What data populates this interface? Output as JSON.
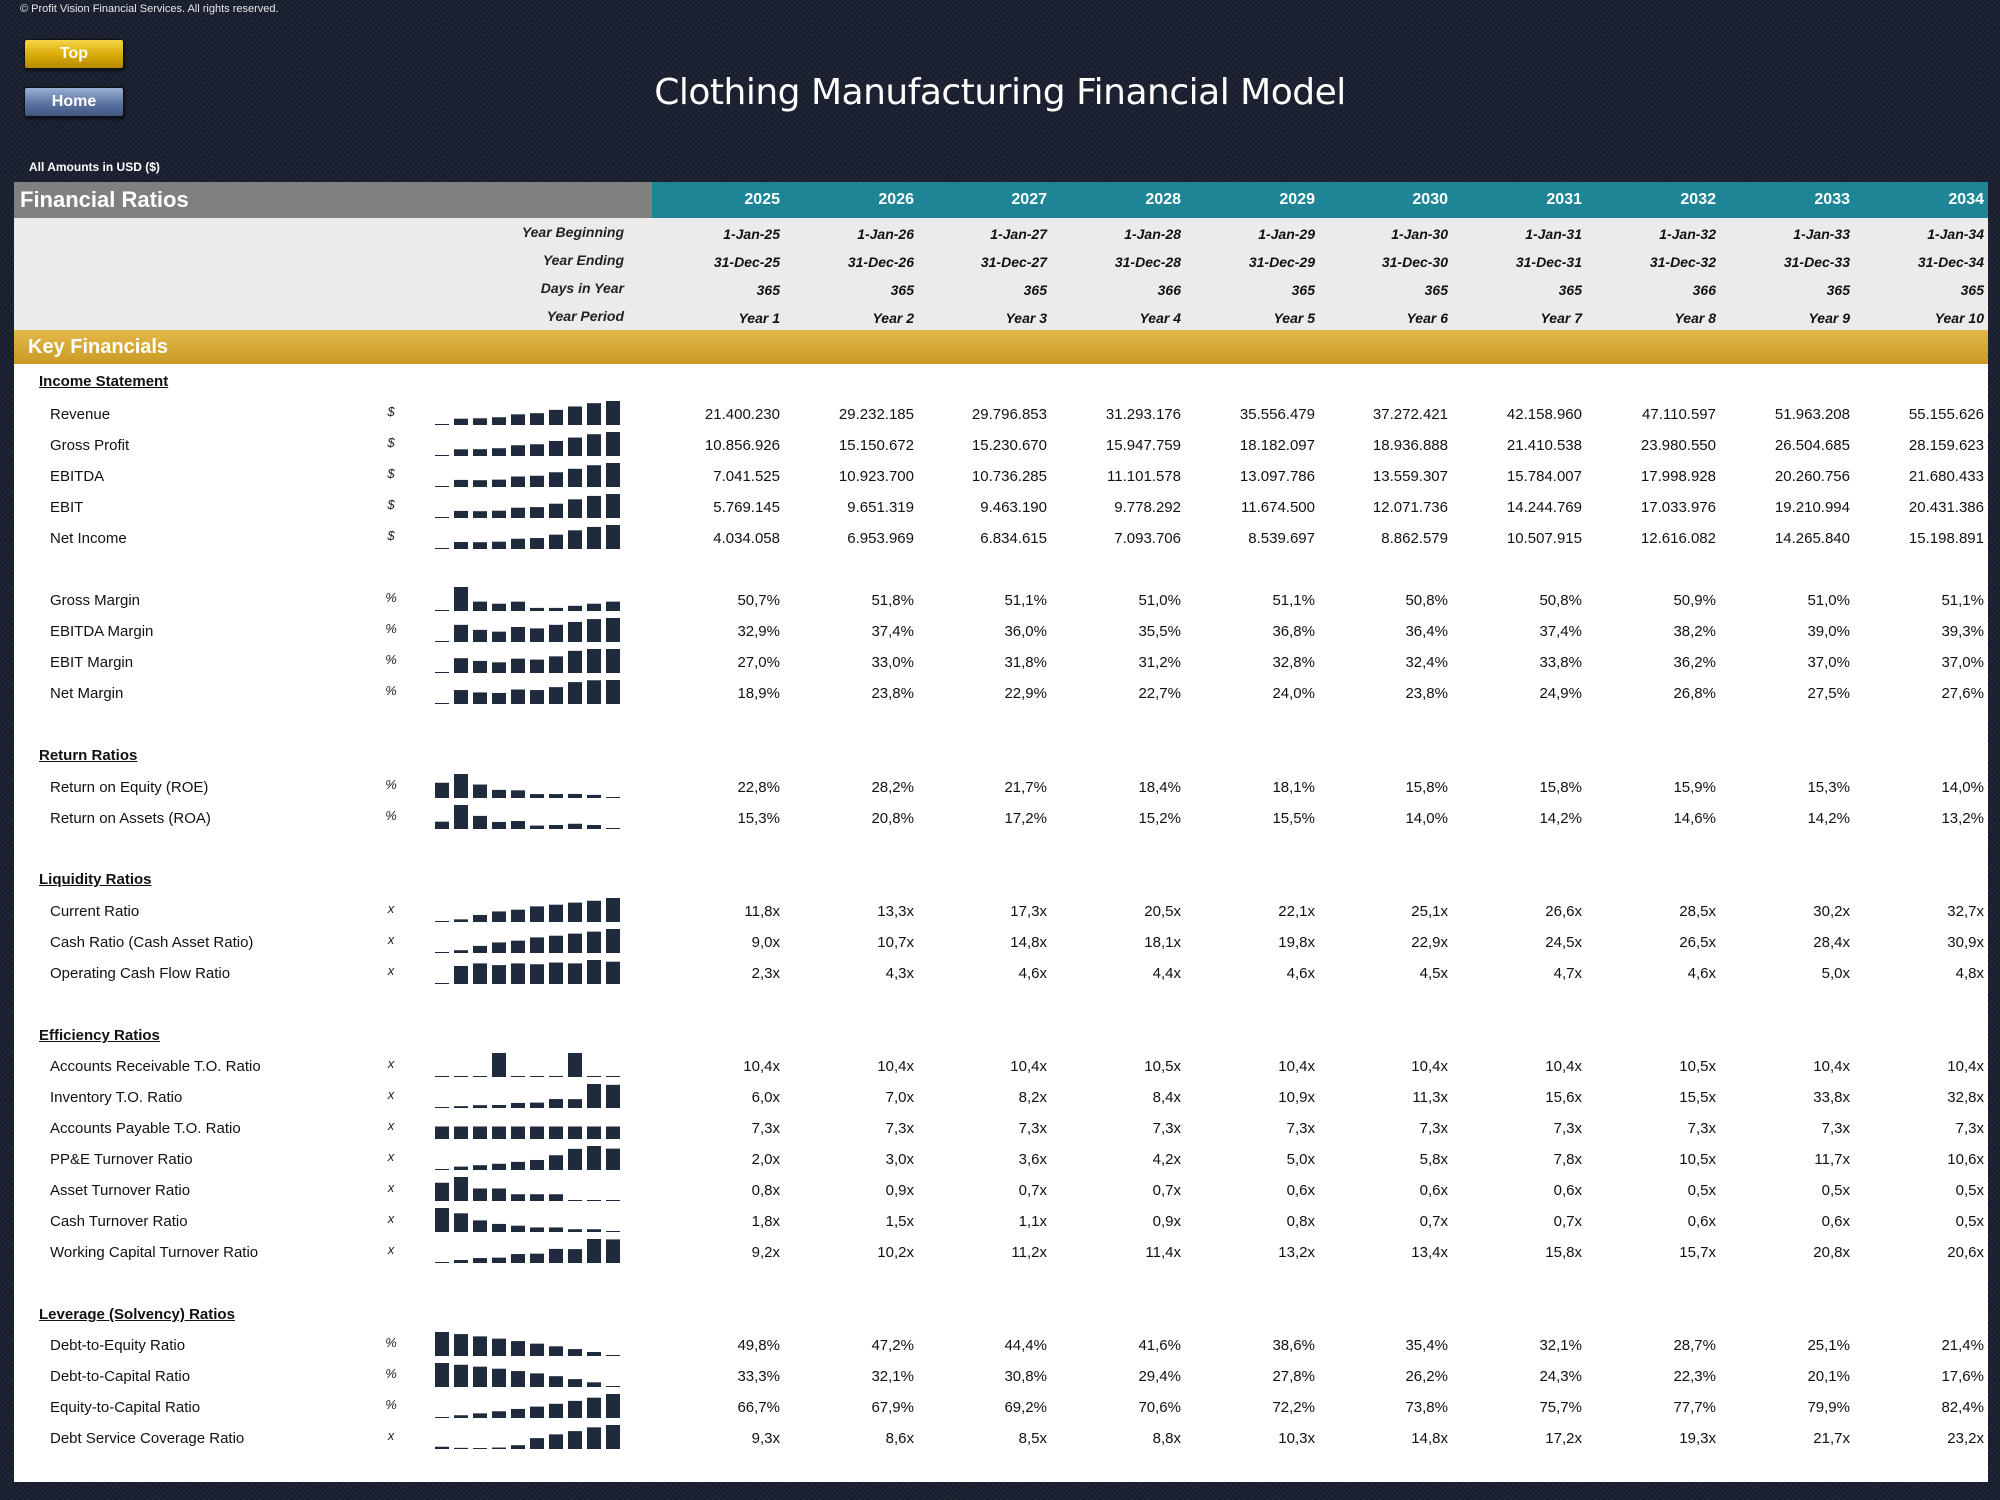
{
  "copyright": "© Profit Vision Financial Services. All rights reserved.",
  "nav": {
    "top_label": "Top",
    "home_label": "Home"
  },
  "page_title": "Clothing Manufacturing Financial Model",
  "amounts_note": "All Amounts in  USD ($)",
  "section_title": "Financial Ratios",
  "years": [
    "2025",
    "2026",
    "2027",
    "2028",
    "2029",
    "2030",
    "2031",
    "2032",
    "2033",
    "2034"
  ],
  "period_rows": [
    {
      "label": "Year Beginning",
      "values": [
        "1-Jan-25",
        "1-Jan-26",
        "1-Jan-27",
        "1-Jan-28",
        "1-Jan-29",
        "1-Jan-30",
        "1-Jan-31",
        "1-Jan-32",
        "1-Jan-33",
        "1-Jan-34"
      ]
    },
    {
      "label": "Year Ending",
      "values": [
        "31-Dec-25",
        "31-Dec-26",
        "31-Dec-27",
        "31-Dec-28",
        "31-Dec-29",
        "31-Dec-30",
        "31-Dec-31",
        "31-Dec-32",
        "31-Dec-33",
        "31-Dec-34"
      ]
    },
    {
      "label": "Days in Year",
      "values": [
        "365",
        "365",
        "365",
        "366",
        "365",
        "365",
        "365",
        "366",
        "365",
        "365"
      ]
    },
    {
      "label": "Year Period",
      "values": [
        "Year 1",
        "Year 2",
        "Year 3",
        "Year 4",
        "Year 5",
        "Year 6",
        "Year 7",
        "Year 8",
        "Year 9",
        "Year 10"
      ]
    }
  ],
  "key_financials_label": "Key Financials",
  "groups": [
    {
      "title": "Income Statement",
      "rows": [
        {
          "label": "Revenue",
          "unit": "$",
          "values": [
            "21.400.230",
            "29.232.185",
            "29.796.853",
            "31.293.176",
            "35.556.479",
            "37.272.421",
            "42.158.960",
            "47.110.597",
            "51.963.208",
            "55.155.626"
          ]
        },
        {
          "label": "Gross Profit",
          "unit": "$",
          "values": [
            "10.856.926",
            "15.150.672",
            "15.230.670",
            "15.947.759",
            "18.182.097",
            "18.936.888",
            "21.410.538",
            "23.980.550",
            "26.504.685",
            "28.159.623"
          ]
        },
        {
          "label": "EBITDA",
          "unit": "$",
          "values": [
            "7.041.525",
            "10.923.700",
            "10.736.285",
            "11.101.578",
            "13.097.786",
            "13.559.307",
            "15.784.007",
            "17.998.928",
            "20.260.756",
            "21.680.433"
          ]
        },
        {
          "label": "EBIT",
          "unit": "$",
          "values": [
            "5.769.145",
            "9.651.319",
            "9.463.190",
            "9.778.292",
            "11.674.500",
            "12.071.736",
            "14.244.769",
            "17.033.976",
            "19.210.994",
            "20.431.386"
          ]
        },
        {
          "label": "Net Income",
          "unit": "$",
          "values": [
            "4.034.058",
            "6.953.969",
            "6.834.615",
            "7.093.706",
            "8.539.697",
            "8.862.579",
            "10.507.915",
            "12.616.082",
            "14.265.840",
            "15.198.891"
          ]
        }
      ]
    },
    {
      "title": "",
      "rows": [
        {
          "label": "Gross Margin",
          "unit": "%",
          "values": [
            "50,7%",
            "51,8%",
            "51,1%",
            "51,0%",
            "51,1%",
            "50,8%",
            "50,8%",
            "50,9%",
            "51,0%",
            "51,1%"
          ]
        },
        {
          "label": "EBITDA Margin",
          "unit": "%",
          "values": [
            "32,9%",
            "37,4%",
            "36,0%",
            "35,5%",
            "36,8%",
            "36,4%",
            "37,4%",
            "38,2%",
            "39,0%",
            "39,3%"
          ]
        },
        {
          "label": "EBIT Margin",
          "unit": "%",
          "values": [
            "27,0%",
            "33,0%",
            "31,8%",
            "31,2%",
            "32,8%",
            "32,4%",
            "33,8%",
            "36,2%",
            "37,0%",
            "37,0%"
          ]
        },
        {
          "label": "Net Margin",
          "unit": "%",
          "values": [
            "18,9%",
            "23,8%",
            "22,9%",
            "22,7%",
            "24,0%",
            "23,8%",
            "24,9%",
            "26,8%",
            "27,5%",
            "27,6%"
          ]
        }
      ]
    },
    {
      "title": "Return Ratios",
      "rows": [
        {
          "label": "Return on Equity (ROE)",
          "unit": "%",
          "values": [
            "22,8%",
            "28,2%",
            "21,7%",
            "18,4%",
            "18,1%",
            "15,8%",
            "15,8%",
            "15,9%",
            "15,3%",
            "14,0%"
          ]
        },
        {
          "label": "Return on Assets (ROA)",
          "unit": "%",
          "values": [
            "15,3%",
            "20,8%",
            "17,2%",
            "15,2%",
            "15,5%",
            "14,0%",
            "14,2%",
            "14,6%",
            "14,2%",
            "13,2%"
          ]
        }
      ]
    },
    {
      "title": "Liquidity Ratios",
      "rows": [
        {
          "label": "Current Ratio",
          "unit": "x",
          "values": [
            "11,8x",
            "13,3x",
            "17,3x",
            "20,5x",
            "22,1x",
            "25,1x",
            "26,6x",
            "28,5x",
            "30,2x",
            "32,7x"
          ]
        },
        {
          "label": "Cash Ratio (Cash Asset Ratio)",
          "unit": "x",
          "values": [
            "9,0x",
            "10,7x",
            "14,8x",
            "18,1x",
            "19,8x",
            "22,9x",
            "24,5x",
            "26,5x",
            "28,4x",
            "30,9x"
          ]
        },
        {
          "label": "Operating Cash Flow Ratio",
          "unit": "x",
          "values": [
            "2,3x",
            "4,3x",
            "4,6x",
            "4,4x",
            "4,6x",
            "4,5x",
            "4,7x",
            "4,6x",
            "5,0x",
            "4,8x"
          ]
        }
      ]
    },
    {
      "title": "Efficiency Ratios",
      "rows": [
        {
          "label": "Accounts Receivable T.O. Ratio",
          "unit": "x",
          "values": [
            "10,4x",
            "10,4x",
            "10,4x",
            "10,5x",
            "10,4x",
            "10,4x",
            "10,4x",
            "10,5x",
            "10,4x",
            "10,4x"
          ]
        },
        {
          "label": "Inventory T.O. Ratio",
          "unit": "x",
          "values": [
            "6,0x",
            "7,0x",
            "8,2x",
            "8,4x",
            "10,9x",
            "11,3x",
            "15,6x",
            "15,5x",
            "33,8x",
            "32,8x"
          ]
        },
        {
          "label": "Accounts Payable T.O. Ratio",
          "unit": "x",
          "values": [
            "7,3x",
            "7,3x",
            "7,3x",
            "7,3x",
            "7,3x",
            "7,3x",
            "7,3x",
            "7,3x",
            "7,3x",
            "7,3x"
          ]
        },
        {
          "label": "PP&E Turnover Ratio",
          "unit": "x",
          "values": [
            "2,0x",
            "3,0x",
            "3,6x",
            "4,2x",
            "5,0x",
            "5,8x",
            "7,8x",
            "10,5x",
            "11,7x",
            "10,6x"
          ]
        },
        {
          "label": "Asset Turnover Ratio",
          "unit": "x",
          "values": [
            "0,8x",
            "0,9x",
            "0,7x",
            "0,7x",
            "0,6x",
            "0,6x",
            "0,6x",
            "0,5x",
            "0,5x",
            "0,5x"
          ]
        },
        {
          "label": "Cash Turnover Ratio",
          "unit": "x",
          "values": [
            "1,8x",
            "1,5x",
            "1,1x",
            "0,9x",
            "0,8x",
            "0,7x",
            "0,7x",
            "0,6x",
            "0,6x",
            "0,5x"
          ]
        },
        {
          "label": "Working Capital Turnover Ratio",
          "unit": "x",
          "values": [
            "9,2x",
            "10,2x",
            "11,2x",
            "11,4x",
            "13,2x",
            "13,4x",
            "15,8x",
            "15,7x",
            "20,8x",
            "20,6x"
          ]
        }
      ]
    },
    {
      "title": "Leverage (Solvency) Ratios",
      "rows": [
        {
          "label": "Debt-to-Equity Ratio",
          "unit": "%",
          "values": [
            "49,8%",
            "47,2%",
            "44,4%",
            "41,6%",
            "38,6%",
            "35,4%",
            "32,1%",
            "28,7%",
            "25,1%",
            "21,4%"
          ]
        },
        {
          "label": "Debt-to-Capital Ratio",
          "unit": "%",
          "values": [
            "33,3%",
            "32,1%",
            "30,8%",
            "29,4%",
            "27,8%",
            "26,2%",
            "24,3%",
            "22,3%",
            "20,1%",
            "17,6%"
          ]
        },
        {
          "label": "Equity-to-Capital Ratio",
          "unit": "%",
          "values": [
            "66,7%",
            "67,9%",
            "69,2%",
            "70,6%",
            "72,2%",
            "73,8%",
            "75,7%",
            "77,7%",
            "79,9%",
            "82,4%"
          ]
        },
        {
          "label": "Debt Service Coverage Ratio",
          "unit": "x",
          "values": [
            "9,3x",
            "8,6x",
            "8,5x",
            "8,8x",
            "10,3x",
            "14,8x",
            "17,2x",
            "19,3x",
            "21,7x",
            "23,2x"
          ]
        }
      ]
    }
  ],
  "colors": {
    "teal": "#1e8597",
    "gold": "#d4a637",
    "gray_header": "#808080",
    "spark_bar": "#1f2a3d",
    "background": "#1c2233"
  }
}
